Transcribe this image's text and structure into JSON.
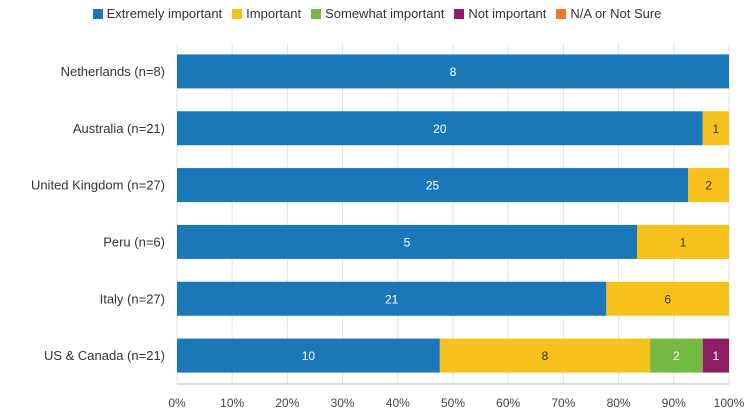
{
  "chart_data": {
    "type": "bar",
    "orientation": "horizontal",
    "stacked": true,
    "normalized": true,
    "categories": [
      "Netherlands (n=8)",
      "Australia (n=21)",
      "United Kingdom (n=27)",
      "Peru (n=6)",
      "Italy (n=27)",
      "US & Canada (n=21)"
    ],
    "series": [
      {
        "name": "Extremely important",
        "color": "#1b78b8",
        "values": [
          8,
          20,
          25,
          5,
          21,
          10
        ]
      },
      {
        "name": "Important",
        "color": "#f6c11d",
        "values": [
          0,
          1,
          2,
          1,
          6,
          8
        ]
      },
      {
        "name": "Somewhat important",
        "color": "#75b843",
        "values": [
          0,
          0,
          0,
          0,
          0,
          2
        ]
      },
      {
        "name": "Not important",
        "color": "#8e1f63",
        "values": [
          0,
          0,
          0,
          0,
          0,
          1
        ]
      },
      {
        "name": "N/A or Not Sure",
        "color": "#ef7a25",
        "values": [
          0,
          0,
          0,
          0,
          0,
          0
        ]
      }
    ],
    "xlim": [
      0,
      100
    ],
    "xticks": [
      "0%",
      "10%",
      "20%",
      "30%",
      "40%",
      "50%",
      "60%",
      "70%",
      "80%",
      "90%",
      "100%"
    ],
    "grid": true,
    "legend_position": "top"
  }
}
